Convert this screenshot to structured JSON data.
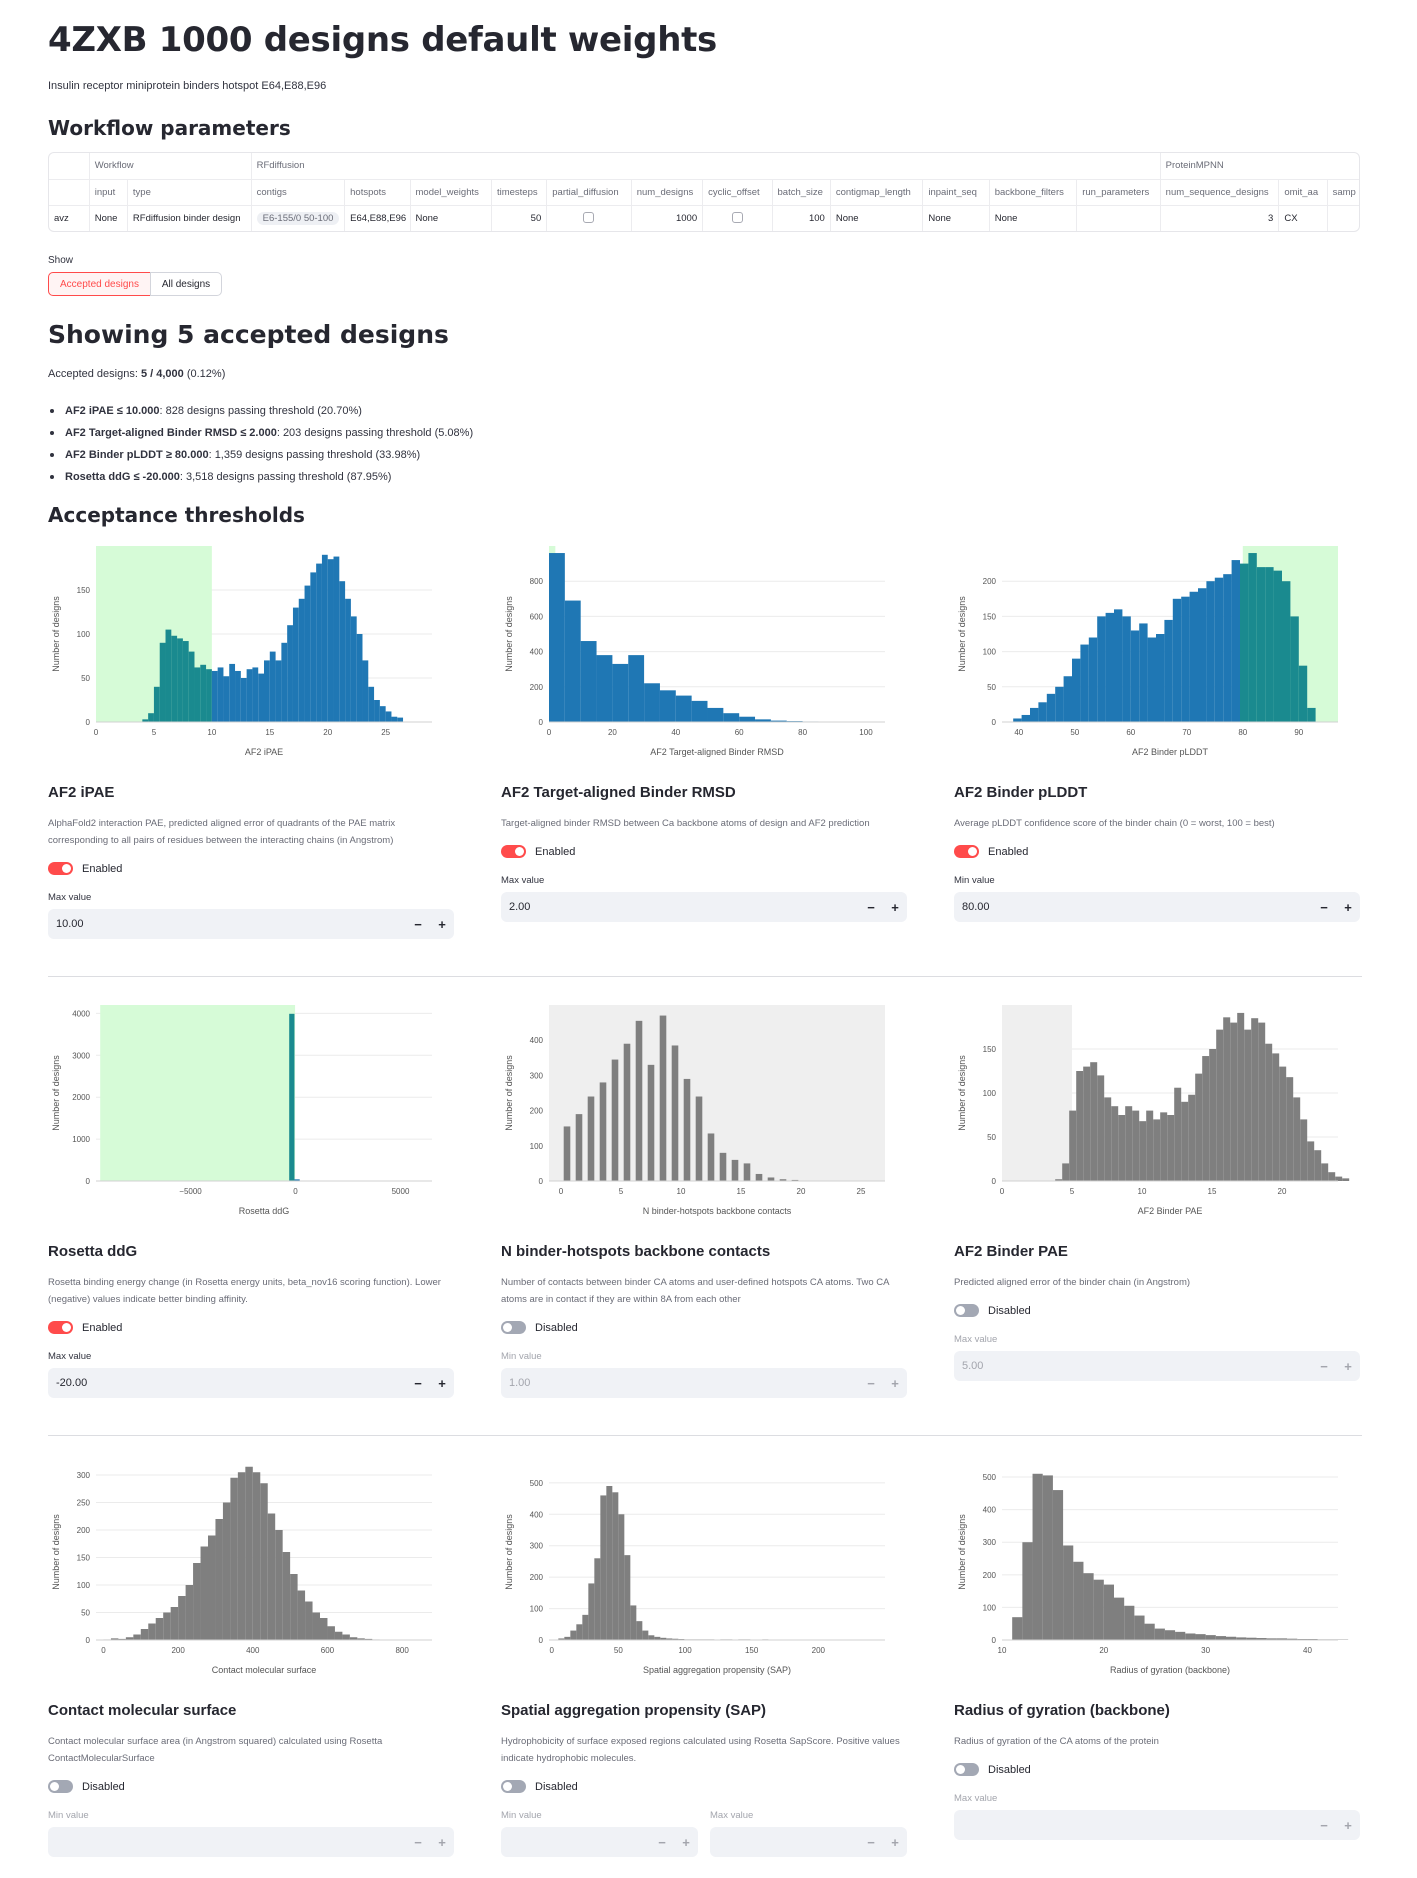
{
  "title": "4ZXB 1000 designs default weights",
  "subtitle": "Insulin receptor miniprotein binders hotspot E64,E88,E96",
  "workflow_heading": "Workflow parameters",
  "table": {
    "groups": [
      "Workflow",
      "RFdiffusion",
      "ProteinMPNN"
    ],
    "columns": [
      "input",
      "type",
      "contigs",
      "hotspots",
      "model_weights",
      "timesteps",
      "partial_diffusion",
      "num_designs",
      "cyclic_offset",
      "batch_size",
      "contigmap_length",
      "inpaint_seq",
      "backbone_filters",
      "run_parameters",
      "num_sequence_designs",
      "omit_aa",
      "samp"
    ],
    "row": {
      "index": "avz",
      "input": "None",
      "type": "RFdiffusion binder design",
      "contigs": "E6-155/0 50-100",
      "hotspots": "E64,E88,E96",
      "model_weights": "None",
      "timesteps": "50",
      "num_designs": "1000",
      "batch_size": "100",
      "contigmap_length": "None",
      "inpaint_seq": "None",
      "backbone_filters": "None",
      "run_parameters": "",
      "num_sequence_designs": "3",
      "omit_aa": "CX"
    }
  },
  "show": {
    "label": "Show",
    "options": [
      "Accepted designs",
      "All designs"
    ]
  },
  "summary_heading": "Showing 5 accepted designs",
  "accepted": {
    "label": "Accepted designs: ",
    "value": "5 / 4,000",
    "pct": " (0.12%)"
  },
  "criteria": [
    {
      "bold": "AF2 iPAE ≤ 10.000",
      "text": ": 828 designs passing threshold (20.70%)"
    },
    {
      "bold": "AF2 Target-aligned Binder RMSD ≤ 2.000",
      "text": ": 203 designs passing threshold (5.08%)"
    },
    {
      "bold": "AF2 Binder pLDDT ≥ 80.000",
      "text": ": 1,359 designs passing threshold (33.98%)"
    },
    {
      "bold": "Rosetta ddG ≤ -20.000",
      "text": ": 3,518 designs passing threshold (87.95%)"
    }
  ],
  "thresholds_heading": "Acceptance thresholds",
  "colors": {
    "accent": "#ff4b4b",
    "blue": "#1f77b4",
    "teal": "#1a8a8f",
    "gray": "#7f7f7f",
    "green_band": "#d6fbd7",
    "gray_band": "#efefef"
  },
  "cards": [
    {
      "title": "AF2 iPAE",
      "desc": "AlphaFold2 interaction PAE, predicted aligned error of quadrants of the PAE matrix corresponding to all pairs of residues between the interacting chains (in Angstrom)",
      "toggle": "Enabled",
      "enabled": true,
      "fields": [
        {
          "label": "Max value",
          "value": "10.00"
        }
      ]
    },
    {
      "title": "AF2 Target-aligned Binder RMSD",
      "desc": "Target-aligned binder RMSD between Ca backbone atoms of design and AF2 prediction",
      "toggle": "Enabled",
      "enabled": true,
      "fields": [
        {
          "label": "Max value",
          "value": "2.00"
        }
      ]
    },
    {
      "title": "AF2 Binder pLDDT",
      "desc": "Average pLDDT confidence score of the binder chain (0 = worst, 100 = best)",
      "toggle": "Enabled",
      "enabled": true,
      "fields": [
        {
          "label": "Min value",
          "value": "80.00"
        }
      ]
    },
    {
      "title": "Rosetta ddG",
      "desc": "Rosetta binding energy change (in Rosetta energy units, beta_nov16 scoring function). Lower (negative) values indicate better binding affinity.",
      "toggle": "Enabled",
      "enabled": true,
      "fields": [
        {
          "label": "Max value",
          "value": "-20.00"
        }
      ]
    },
    {
      "title": "N binder-hotspots backbone contacts",
      "desc": "Number of contacts between binder CA atoms and user-defined hotspots CA atoms. Two CA atoms are in contact if they are within 8A from each other",
      "toggle": "Disabled",
      "enabled": false,
      "fields": [
        {
          "label": "Min value",
          "value": "1.00"
        }
      ]
    },
    {
      "title": "AF2 Binder PAE",
      "desc": "Predicted aligned error of the binder chain (in Angstrom)",
      "toggle": "Disabled",
      "enabled": false,
      "fields": [
        {
          "label": "Max value",
          "value": "5.00"
        }
      ]
    },
    {
      "title": "Contact molecular surface",
      "desc": "Contact molecular surface area (in Angstrom squared) calculated using Rosetta ContactMolecularSurface",
      "toggle": "Disabled",
      "enabled": false,
      "fields": [
        {
          "label": "Min value",
          "value": ""
        }
      ]
    },
    {
      "title": "Spatial aggregation propensity (SAP)",
      "desc": "Hydrophobicity of surface exposed regions calculated using Rosetta SapScore. Positive values indicate hydrophobic molecules.",
      "toggle": "Disabled",
      "enabled": false,
      "fields": [
        {
          "label": "Min value",
          "value": ""
        },
        {
          "label": "Max value",
          "value": ""
        }
      ]
    },
    {
      "title": "Radius of gyration (backbone)",
      "desc": "Radius of gyration of the CA atoms of the protein",
      "toggle": "Disabled",
      "enabled": false,
      "fields": [
        {
          "label": "Max value",
          "value": ""
        }
      ]
    }
  ],
  "chart_data": [
    {
      "type": "bar",
      "title": "AF2 iPAE",
      "xlabel": "AF2 iPAE",
      "ylabel": "Number of designs",
      "xlim": [
        0,
        29
      ],
      "ylim": [
        0,
        200
      ],
      "xticks": [
        0,
        5,
        10,
        15,
        20,
        25
      ],
      "yticks": [
        0,
        50,
        100,
        150
      ],
      "bin_start": 4,
      "bin_width": 0.5,
      "threshold": {
        "min": 0,
        "max": 10,
        "band": "green"
      },
      "values": [
        3,
        10,
        40,
        90,
        105,
        98,
        95,
        92,
        80,
        62,
        65,
        60,
        58,
        62,
        52,
        66,
        58,
        50,
        60,
        62,
        55,
        70,
        80,
        70,
        90,
        110,
        130,
        140,
        155,
        170,
        180,
        190,
        185,
        188,
        160,
        140,
        120,
        100,
        70,
        40,
        25,
        18,
        12,
        6,
        5
      ]
    },
    {
      "type": "bar",
      "title": "AF2 Target-aligned Binder RMSD",
      "xlabel": "AF2 Target-aligned Binder RMSD",
      "ylabel": "Number of designs",
      "xlim": [
        0,
        106
      ],
      "ylim": [
        0,
        1000
      ],
      "xticks": [
        0,
        20,
        40,
        60,
        80,
        100
      ],
      "yticks": [
        0,
        200,
        400,
        600,
        800
      ],
      "bin_start": 0,
      "bin_width": 5,
      "threshold": {
        "min": 0,
        "max": 2,
        "band": "green"
      },
      "values": [
        960,
        690,
        460,
        380,
        330,
        380,
        220,
        180,
        150,
        120,
        80,
        50,
        30,
        15,
        8,
        5,
        3,
        2,
        1,
        1,
        1
      ]
    },
    {
      "type": "bar",
      "title": "AF2 Binder pLDDT",
      "xlabel": "AF2 Binder pLDDT",
      "ylabel": "Number of designs",
      "xlim": [
        37,
        97
      ],
      "ylim": [
        0,
        250
      ],
      "xticks": [
        40,
        50,
        60,
        70,
        80,
        90
      ],
      "yticks": [
        0,
        50,
        100,
        150,
        200
      ],
      "bin_start": 39,
      "bin_width": 1.5,
      "threshold": {
        "min": 80,
        "max": 97,
        "band": "green"
      },
      "values": [
        5,
        10,
        20,
        28,
        40,
        50,
        65,
        90,
        110,
        120,
        150,
        155,
        160,
        150,
        130,
        140,
        120,
        125,
        145,
        175,
        178,
        185,
        190,
        200,
        205,
        210,
        230,
        225,
        240,
        220,
        220,
        215,
        200,
        150,
        80,
        20
      ]
    },
    {
      "type": "bar",
      "title": "Rosetta ddG",
      "xlabel": "Rosetta ddG",
      "ylabel": "Number of designs",
      "xlim": [
        -9500,
        6500
      ],
      "ylim": [
        0,
        4200
      ],
      "xticks": [
        -5000,
        0,
        5000
      ],
      "yticks": [
        0,
        1000,
        2000,
        3000,
        4000
      ],
      "bin_start": -300,
      "bin_width": 250,
      "threshold": {
        "min": -9300,
        "max": -20,
        "band": "green"
      },
      "values": [
        3990,
        40
      ]
    },
    {
      "type": "bar",
      "title": "N binder-hotspots backbone contacts",
      "xlabel": "N binder-hotspots backbone contacts",
      "ylabel": "Number of designs",
      "xlim": [
        -1,
        27
      ],
      "ylim": [
        0,
        500
      ],
      "xticks": [
        0,
        5,
        10,
        15,
        20,
        25
      ],
      "yticks": [
        0,
        100,
        200,
        300,
        400
      ],
      "bin_start": 0,
      "bin_width": 1,
      "bar_frac": 0.55,
      "threshold": {
        "min": -1,
        "max": 27,
        "band": "gray"
      },
      "values": [
        155,
        190,
        240,
        280,
        345,
        390,
        455,
        330,
        470,
        385,
        290,
        240,
        135,
        80,
        60,
        50,
        20,
        10,
        5,
        3
      ]
    },
    {
      "type": "bar",
      "title": "AF2 Binder PAE",
      "xlabel": "AF2 Binder PAE",
      "ylabel": "Number of designs",
      "xlim": [
        0,
        24
      ],
      "ylim": [
        0,
        200
      ],
      "xticks": [
        0,
        5,
        10,
        15,
        20
      ],
      "yticks": [
        0,
        50,
        100,
        150
      ],
      "bin_start": 3.8,
      "bin_width": 0.5,
      "threshold": {
        "min": 0,
        "max": 5,
        "band": "gray"
      },
      "values": [
        2,
        20,
        80,
        125,
        130,
        135,
        120,
        95,
        85,
        75,
        85,
        80,
        68,
        80,
        70,
        78,
        75,
        106,
        90,
        98,
        122,
        142,
        150,
        172,
        186,
        180,
        191,
        172,
        185,
        180,
        156,
        145,
        130,
        118,
        95,
        70,
        45,
        35,
        20,
        10,
        5,
        3
      ]
    },
    {
      "type": "bar",
      "title": "Contact molecular surface",
      "xlabel": "Contact molecular surface",
      "ylabel": "Number of designs",
      "xlim": [
        -20,
        880
      ],
      "ylim": [
        0,
        320
      ],
      "xticks": [
        0,
        200,
        400,
        600,
        800
      ],
      "yticks": [
        0,
        50,
        100,
        150,
        200,
        250,
        300
      ],
      "bin_start": 0,
      "bin_width": 20,
      "values": [
        1,
        3,
        2,
        5,
        10,
        20,
        30,
        40,
        50,
        60,
        80,
        100,
        140,
        170,
        190,
        220,
        250,
        295,
        305,
        315,
        305,
        285,
        230,
        200,
        160,
        120,
        90,
        70,
        50,
        40,
        25,
        15,
        10,
        5,
        3,
        2,
        1
      ]
    },
    {
      "type": "bar",
      "title": "Spatial aggregation propensity (SAP)",
      "xlabel": "Spatial aggregation propensity (SAP)",
      "ylabel": "Number of designs",
      "xlim": [
        -2,
        250
      ],
      "ylim": [
        0,
        560
      ],
      "xticks": [
        0,
        50,
        100,
        150,
        200
      ],
      "yticks": [
        0,
        100,
        200,
        300,
        400,
        500
      ],
      "bin_start": 5,
      "bin_width": 4.5,
      "values": [
        5,
        10,
        30,
        50,
        80,
        180,
        260,
        460,
        490,
        470,
        400,
        270,
        110,
        60,
        30,
        15,
        10,
        7,
        5,
        4,
        3,
        2,
        2,
        2,
        2,
        2,
        1,
        2,
        2,
        1,
        2,
        2,
        1,
        1,
        2,
        1,
        1,
        1,
        1,
        1,
        1
      ]
    },
    {
      "type": "bar",
      "title": "Radius of gyration (backbone)",
      "xlabel": "Radius of gyration (backbone)",
      "ylabel": "Number of designs",
      "xlim": [
        10,
        43
      ],
      "ylim": [
        0,
        540
      ],
      "xticks": [
        10,
        20,
        30,
        40
      ],
      "yticks": [
        0,
        100,
        200,
        300,
        400,
        500
      ],
      "bin_start": 11,
      "bin_width": 1,
      "values": [
        70,
        300,
        510,
        505,
        460,
        290,
        240,
        205,
        185,
        170,
        130,
        105,
        75,
        50,
        35,
        30,
        25,
        20,
        18,
        15,
        12,
        10,
        8,
        7,
        6,
        5,
        5,
        4,
        3,
        3,
        2,
        2,
        1
      ]
    }
  ]
}
